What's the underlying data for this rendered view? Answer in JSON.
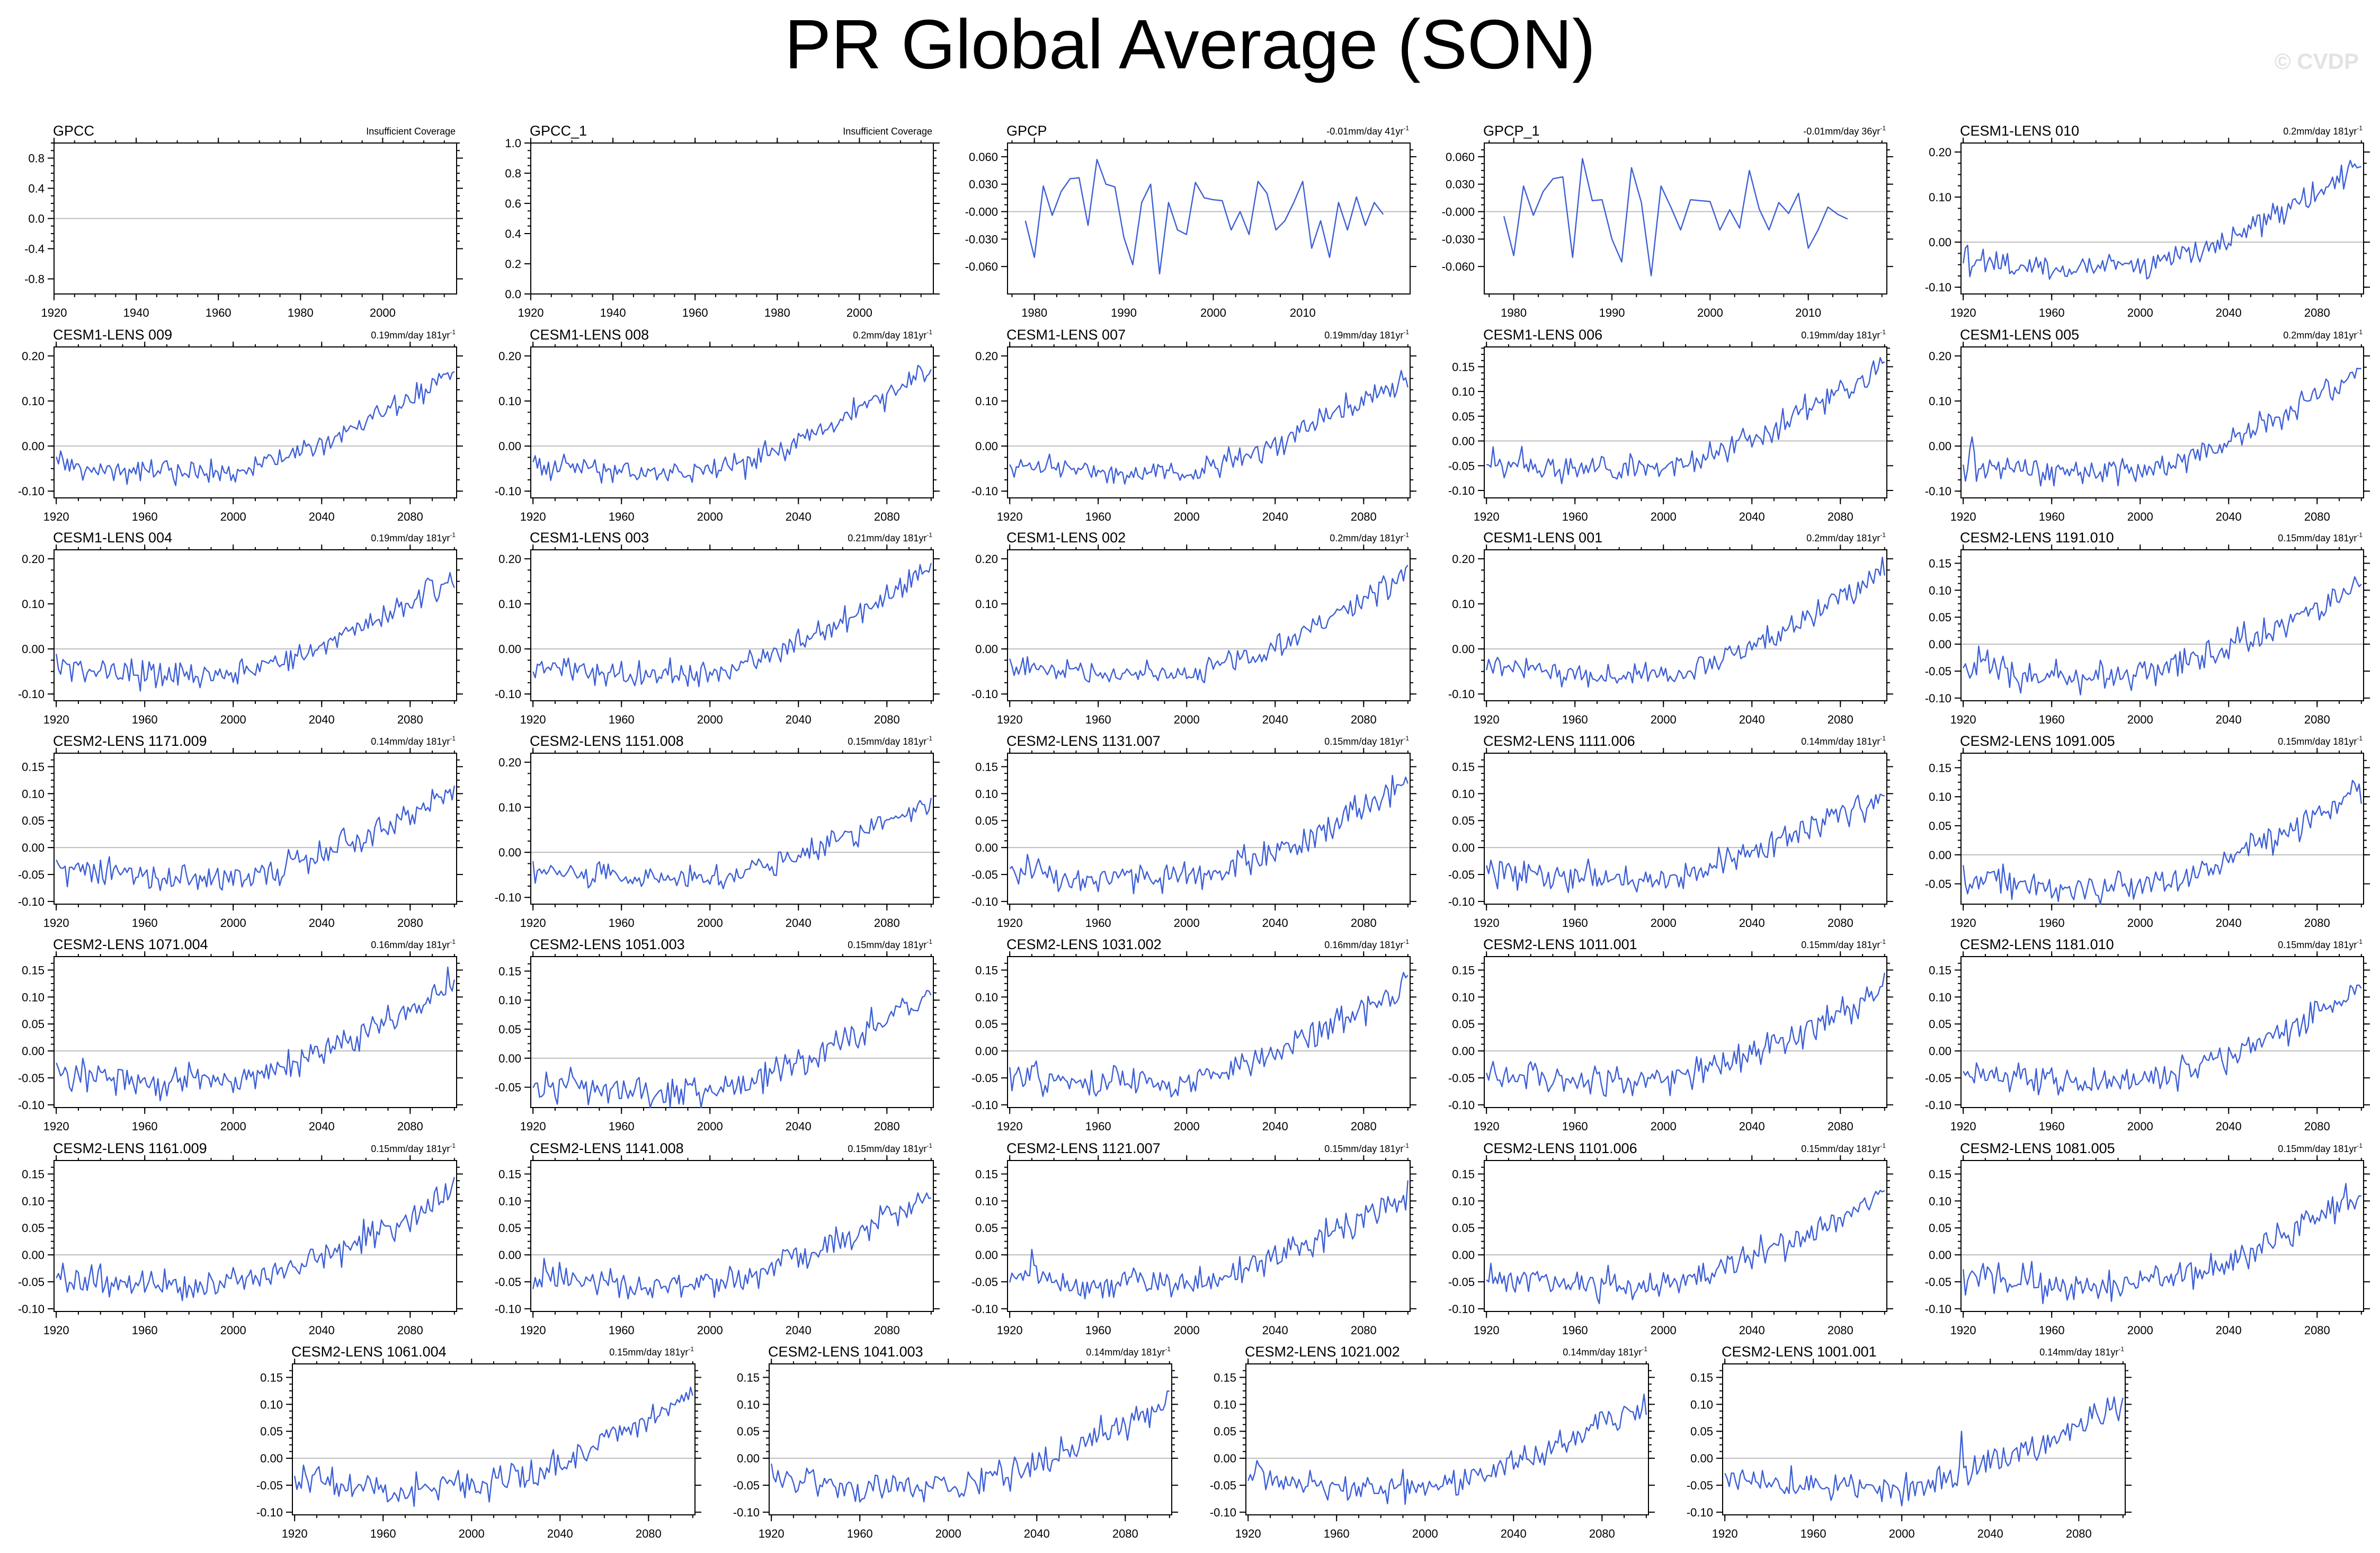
{
  "title": "PR Global Average (SON)",
  "watermark": "© CVDP",
  "colors": {
    "series": "#3d5fd6",
    "zero_line": "#bdbdbd",
    "axes": "#000000"
  },
  "chart_data": [
    {
      "type": "line",
      "panel": "GPCC",
      "note": "Insufficient Coverage",
      "xlim": [
        1920,
        2018
      ],
      "xticks": [
        1920,
        1940,
        1960,
        1980,
        2000
      ],
      "ylim": [
        -1,
        1
      ],
      "yticks": [
        "0.8",
        "0.4",
        "0.0",
        "-0.4",
        "-0.8"
      ],
      "series": []
    },
    {
      "type": "line",
      "panel": "GPCC_1",
      "note": "Insufficient Coverage",
      "xlim": [
        1920,
        2018
      ],
      "xticks": [
        1920,
        1940,
        1960,
        1980,
        2000
      ],
      "ylim": [
        0,
        1
      ],
      "yticks": [
        "1.0",
        "0.8",
        "0.6",
        "0.4",
        "0.2",
        "0.0"
      ],
      "series": []
    },
    {
      "type": "line",
      "panel": "GPCP",
      "trend": "-0.01mm/day 41yr",
      "trend_sup": "-1",
      "xlim": [
        1977,
        2022
      ],
      "xticks": [
        1980,
        1990,
        2000,
        2010
      ],
      "ylim": [
        -0.09,
        0.075
      ],
      "yticks": [
        "0.060",
        "0.030",
        "-0.000",
        "-0.030",
        "-0.060"
      ],
      "series": [
        {
          "x0": 1979,
          "values": [
            -0.01,
            -0.05,
            0.028,
            -0.004,
            0.022,
            0.036,
            0.037,
            -0.015,
            0.057,
            0.03,
            0.027,
            -0.028,
            -0.058,
            0.01,
            0.03,
            -0.068,
            0.01,
            -0.02,
            -0.025,
            0.032,
            0.015,
            0.013,
            0.012,
            -0.02,
            0,
            -0.025,
            0.033,
            0.02,
            -0.02,
            -0.01,
            0.01,
            0.033,
            -0.04,
            -0.01,
            -0.05,
            0.01,
            -0.02,
            0.016,
            -0.015,
            0.01,
            -0.003
          ]
        }
      ]
    },
    {
      "type": "line",
      "panel": "GPCP_1",
      "trend": "-0.01mm/day 36yr",
      "trend_sup": "-1",
      "xlim": [
        1977,
        2018
      ],
      "xticks": [
        1980,
        1990,
        2000,
        2010
      ],
      "ylim": [
        -0.09,
        0.075
      ],
      "yticks": [
        "0.060",
        "0.030",
        "-0.000",
        "-0.030",
        "-0.060"
      ],
      "series": [
        {
          "x0": 1979,
          "values": [
            -0.005,
            -0.048,
            0.028,
            -0.004,
            0.022,
            0.036,
            0.038,
            -0.05,
            0.058,
            0.012,
            0.013,
            -0.03,
            -0.055,
            0.048,
            0.01,
            -0.07,
            0.028,
            0.005,
            -0.02,
            0.013,
            0.012,
            0.011,
            -0.02,
            0.002,
            -0.018,
            0.045,
            0.003,
            -0.02,
            0.01,
            -0.002,
            0.02,
            -0.04,
            -0.02,
            0.005,
            -0.003,
            -0.008
          ]
        }
      ]
    },
    {
      "type": "line",
      "panel": "CESM1-LENS 010",
      "trend": "0.2mm/day 181yr",
      "trend_sup": "-1",
      "seed": 10,
      "slope": 0.2,
      "spike_year": 0,
      "spike_val": 0,
      "xlim": [
        1919,
        2101
      ],
      "xticks": [
        1920,
        1960,
        2000,
        2040,
        2080
      ],
      "ylim": [
        -0.115,
        0.22
      ],
      "yticks": [
        "0.20",
        "0.10",
        "0.00",
        "-0.10"
      ]
    },
    {
      "type": "line",
      "panel": "CESM1-LENS 009",
      "trend": "0.19mm/day 181yr",
      "trend_sup": "-1",
      "seed": 9,
      "slope": 0.19,
      "spike_year": 0,
      "spike_val": 0,
      "xlim": [
        1919,
        2101
      ],
      "xticks": [
        1920,
        1960,
        2000,
        2040,
        2080
      ],
      "ylim": [
        -0.115,
        0.22
      ],
      "yticks": [
        "0.20",
        "0.10",
        "0.00",
        "-0.10"
      ]
    },
    {
      "type": "line",
      "panel": "CESM1-LENS 008",
      "trend": "0.2mm/day 181yr",
      "trend_sup": "-1",
      "seed": 8,
      "slope": 0.2,
      "spike_year": 0,
      "spike_val": 0,
      "xlim": [
        1919,
        2101
      ],
      "xticks": [
        1920,
        1960,
        2000,
        2040,
        2080
      ],
      "ylim": [
        -0.115,
        0.22
      ],
      "yticks": [
        "0.20",
        "0.10",
        "0.00",
        "-0.10"
      ]
    },
    {
      "type": "line",
      "panel": "CESM1-LENS 007",
      "trend": "0.19mm/day 181yr",
      "trend_sup": "-1",
      "seed": 7,
      "slope": 0.19,
      "spike_year": 0,
      "spike_val": 0,
      "xlim": [
        1919,
        2101
      ],
      "xticks": [
        1920,
        1960,
        2000,
        2040,
        2080
      ],
      "ylim": [
        -0.115,
        0.22
      ],
      "yticks": [
        "0.20",
        "0.10",
        "0.00",
        "-0.10"
      ]
    },
    {
      "type": "line",
      "panel": "CESM1-LENS 006",
      "trend": "0.19mm/day 181yr",
      "trend_sup": "-1",
      "seed": 6,
      "slope": 0.19,
      "spike_year": 0,
      "spike_val": 0,
      "xlim": [
        1919,
        2101
      ],
      "xticks": [
        1920,
        1960,
        2000,
        2040,
        2080
      ],
      "ylim": [
        -0.115,
        0.19
      ],
      "yticks": [
        "0.15",
        "0.10",
        "0.05",
        "0.00",
        "-0.05",
        "-0.10"
      ]
    },
    {
      "type": "line",
      "panel": "CESM1-LENS 005",
      "trend": "0.2mm/day 181yr",
      "trend_sup": "-1",
      "seed": 5,
      "slope": 0.2,
      "spike_year": 1924,
      "spike_val": 0.02,
      "xlim": [
        1919,
        2101
      ],
      "xticks": [
        1920,
        1960,
        2000,
        2040,
        2080
      ],
      "ylim": [
        -0.115,
        0.22
      ],
      "yticks": [
        "0.20",
        "0.10",
        "0.00",
        "-0.10"
      ]
    },
    {
      "type": "line",
      "panel": "CESM1-LENS 004",
      "trend": "0.19mm/day 181yr",
      "trend_sup": "-1",
      "seed": 4,
      "slope": 0.19,
      "spike_year": 0,
      "spike_val": 0,
      "xlim": [
        1919,
        2101
      ],
      "xticks": [
        1920,
        1960,
        2000,
        2040,
        2080
      ],
      "ylim": [
        -0.115,
        0.22
      ],
      "yticks": [
        "0.20",
        "0.10",
        "0.00",
        "-0.10"
      ]
    },
    {
      "type": "line",
      "panel": "CESM1-LENS 003",
      "trend": "0.21mm/day 181yr",
      "trend_sup": "-1",
      "seed": 3,
      "slope": 0.21,
      "spike_year": 0,
      "spike_val": 0,
      "xlim": [
        1919,
        2101
      ],
      "xticks": [
        1920,
        1960,
        2000,
        2040,
        2080
      ],
      "ylim": [
        -0.115,
        0.22
      ],
      "yticks": [
        "0.20",
        "0.10",
        "0.00",
        "-0.10"
      ]
    },
    {
      "type": "line",
      "panel": "CESM1-LENS 002",
      "trend": "0.2mm/day 181yr",
      "trend_sup": "-1",
      "seed": 2,
      "slope": 0.2,
      "spike_year": 0,
      "spike_val": 0,
      "xlim": [
        1919,
        2101
      ],
      "xticks": [
        1920,
        1960,
        2000,
        2040,
        2080
      ],
      "ylim": [
        -0.115,
        0.22
      ],
      "yticks": [
        "0.20",
        "0.10",
        "0.00",
        "-0.10"
      ]
    },
    {
      "type": "line",
      "panel": "CESM1-LENS 001",
      "trend": "0.2mm/day 181yr",
      "trend_sup": "-1",
      "seed": 1,
      "slope": 0.2,
      "spike_year": 0,
      "spike_val": 0,
      "xlim": [
        1919,
        2101
      ],
      "xticks": [
        1920,
        1960,
        2000,
        2040,
        2080
      ],
      "ylim": [
        -0.115,
        0.22
      ],
      "yticks": [
        "0.20",
        "0.10",
        "0.00",
        "-0.10"
      ]
    },
    {
      "type": "line",
      "panel": "CESM2-LENS 1191.010",
      "trend": "0.15mm/day 181yr",
      "trend_sup": "-1",
      "seed": 21,
      "slope": 0.15,
      "spike_year": 0,
      "spike_val": 0,
      "xlim": [
        1919,
        2101
      ],
      "xticks": [
        1920,
        1960,
        2000,
        2040,
        2080
      ],
      "ylim": [
        -0.105,
        0.175
      ],
      "yticks": [
        "0.15",
        "0.10",
        "0.05",
        "0.00",
        "-0.05",
        "-0.10"
      ]
    },
    {
      "type": "line",
      "panel": "CESM2-LENS 1171.009",
      "trend": "0.14mm/day 181yr",
      "trend_sup": "-1",
      "seed": 22,
      "slope": 0.14,
      "spike_year": 0,
      "spike_val": 0,
      "xlim": [
        1919,
        2101
      ],
      "xticks": [
        1920,
        1960,
        2000,
        2040,
        2080
      ],
      "ylim": [
        -0.105,
        0.175
      ],
      "yticks": [
        "0.15",
        "0.10",
        "0.05",
        "0.00",
        "-0.05",
        "-0.10"
      ]
    },
    {
      "type": "line",
      "panel": "CESM2-LENS 1151.008",
      "trend": "0.15mm/day 181yr",
      "trend_sup": "-1",
      "seed": 23,
      "slope": 0.15,
      "spike_year": 0,
      "spike_val": 0,
      "xlim": [
        1919,
        2101
      ],
      "xticks": [
        1920,
        1960,
        2000,
        2040,
        2080
      ],
      "ylim": [
        -0.115,
        0.22
      ],
      "yticks": [
        "0.20",
        "0.10",
        "0.00",
        "-0.10"
      ]
    },
    {
      "type": "line",
      "panel": "CESM2-LENS 1131.007",
      "trend": "0.15mm/day 181yr",
      "trend_sup": "-1",
      "seed": 24,
      "slope": 0.15,
      "spike_year": 0,
      "spike_val": 0,
      "xlim": [
        1919,
        2101
      ],
      "xticks": [
        1920,
        1960,
        2000,
        2040,
        2080
      ],
      "ylim": [
        -0.105,
        0.175
      ],
      "yticks": [
        "0.15",
        "0.10",
        "0.05",
        "0.00",
        "-0.05",
        "-0.10"
      ]
    },
    {
      "type": "line",
      "panel": "CESM2-LENS 1111.006",
      "trend": "0.14mm/day 181yr",
      "trend_sup": "-1",
      "seed": 25,
      "slope": 0.14,
      "spike_year": 0,
      "spike_val": 0,
      "xlim": [
        1919,
        2101
      ],
      "xticks": [
        1920,
        1960,
        2000,
        2040,
        2080
      ],
      "ylim": [
        -0.105,
        0.175
      ],
      "yticks": [
        "0.15",
        "0.10",
        "0.05",
        "0.00",
        "-0.05",
        "-0.10"
      ]
    },
    {
      "type": "line",
      "panel": "CESM2-LENS 1091.005",
      "trend": "0.15mm/day 181yr",
      "trend_sup": "-1",
      "seed": 26,
      "slope": 0.15,
      "spike_year": 0,
      "spike_val": 0,
      "xlim": [
        1919,
        2101
      ],
      "xticks": [
        1920,
        1960,
        2000,
        2040,
        2080
      ],
      "ylim": [
        -0.085,
        0.175
      ],
      "yticks": [
        "0.15",
        "0.10",
        "0.05",
        "0.00",
        "-0.05"
      ]
    },
    {
      "type": "line",
      "panel": "CESM2-LENS 1071.004",
      "trend": "0.16mm/day 181yr",
      "trend_sup": "-1",
      "seed": 27,
      "slope": 0.16,
      "spike_year": 0,
      "spike_val": 0,
      "xlim": [
        1919,
        2101
      ],
      "xticks": [
        1920,
        1960,
        2000,
        2040,
        2080
      ],
      "ylim": [
        -0.105,
        0.175
      ],
      "yticks": [
        "0.15",
        "0.10",
        "0.05",
        "0.00",
        "-0.05",
        "-0.10"
      ]
    },
    {
      "type": "line",
      "panel": "CESM2-LENS 1051.003",
      "trend": "0.15mm/day 181yr",
      "trend_sup": "-1",
      "seed": 28,
      "slope": 0.15,
      "spike_year": 0,
      "spike_val": 0,
      "xlim": [
        1919,
        2101
      ],
      "xticks": [
        1920,
        1960,
        2000,
        2040,
        2080
      ],
      "ylim": [
        -0.085,
        0.175
      ],
      "yticks": [
        "0.15",
        "0.10",
        "0.05",
        "0.00",
        "-0.05"
      ]
    },
    {
      "type": "line",
      "panel": "CESM2-LENS 1031.002",
      "trend": "0.16mm/day 181yr",
      "trend_sup": "-1",
      "seed": 29,
      "slope": 0.16,
      "spike_year": 0,
      "spike_val": 0,
      "xlim": [
        1919,
        2101
      ],
      "xticks": [
        1920,
        1960,
        2000,
        2040,
        2080
      ],
      "ylim": [
        -0.105,
        0.175
      ],
      "yticks": [
        "0.15",
        "0.10",
        "0.05",
        "0.00",
        "-0.05",
        "-0.10"
      ]
    },
    {
      "type": "line",
      "panel": "CESM2-LENS 1011.001",
      "trend": "0.15mm/day 181yr",
      "trend_sup": "-1",
      "seed": 30,
      "slope": 0.15,
      "spike_year": 0,
      "spike_val": 0,
      "xlim": [
        1919,
        2101
      ],
      "xticks": [
        1920,
        1960,
        2000,
        2040,
        2080
      ],
      "ylim": [
        -0.105,
        0.175
      ],
      "yticks": [
        "0.15",
        "0.10",
        "0.05",
        "0.00",
        "-0.05",
        "-0.10"
      ]
    },
    {
      "type": "line",
      "panel": "CESM2-LENS 1181.010",
      "trend": "0.15mm/day 181yr",
      "trend_sup": "-1",
      "seed": 31,
      "slope": 0.15,
      "spike_year": 0,
      "spike_val": 0,
      "xlim": [
        1919,
        2101
      ],
      "xticks": [
        1920,
        1960,
        2000,
        2040,
        2080
      ],
      "ylim": [
        -0.105,
        0.175
      ],
      "yticks": [
        "0.15",
        "0.10",
        "0.05",
        "0.00",
        "-0.05",
        "-0.10"
      ]
    },
    {
      "type": "line",
      "panel": "CESM2-LENS 1161.009",
      "trend": "0.15mm/day 181yr",
      "trend_sup": "-1",
      "seed": 32,
      "slope": 0.15,
      "spike_year": 0,
      "spike_val": 0,
      "xlim": [
        1919,
        2101
      ],
      "xticks": [
        1920,
        1960,
        2000,
        2040,
        2080
      ],
      "ylim": [
        -0.105,
        0.175
      ],
      "yticks": [
        "0.15",
        "0.10",
        "0.05",
        "0.00",
        "-0.05",
        "-0.10"
      ]
    },
    {
      "type": "line",
      "panel": "CESM2-LENS 1141.008",
      "trend": "0.15mm/day 181yr",
      "trend_sup": "-1",
      "seed": 33,
      "slope": 0.15,
      "spike_year": 0,
      "spike_val": 0,
      "xlim": [
        1919,
        2101
      ],
      "xticks": [
        1920,
        1960,
        2000,
        2040,
        2080
      ],
      "ylim": [
        -0.105,
        0.175
      ],
      "yticks": [
        "0.15",
        "0.10",
        "0.05",
        "0.00",
        "-0.05",
        "-0.10"
      ]
    },
    {
      "type": "line",
      "panel": "CESM2-LENS 1121.007",
      "trend": "0.15mm/day 181yr",
      "trend_sup": "-1",
      "seed": 34,
      "slope": 0.15,
      "spike_year": 1930,
      "spike_val": 0.01,
      "xlim": [
        1919,
        2101
      ],
      "xticks": [
        1920,
        1960,
        2000,
        2040,
        2080
      ],
      "ylim": [
        -0.105,
        0.175
      ],
      "yticks": [
        "0.15",
        "0.10",
        "0.05",
        "0.00",
        "-0.05",
        "-0.10"
      ]
    },
    {
      "type": "line",
      "panel": "CESM2-LENS 1101.006",
      "trend": "0.15mm/day 181yr",
      "trend_sup": "-1",
      "seed": 35,
      "slope": 0.15,
      "spike_year": 0,
      "spike_val": 0,
      "xlim": [
        1919,
        2101
      ],
      "xticks": [
        1920,
        1960,
        2000,
        2040,
        2080
      ],
      "ylim": [
        -0.105,
        0.175
      ],
      "yticks": [
        "0.15",
        "0.10",
        "0.05",
        "0.00",
        "-0.05",
        "-0.10"
      ]
    },
    {
      "type": "line",
      "panel": "CESM2-LENS 1081.005",
      "trend": "0.15mm/day 181yr",
      "trend_sup": "-1",
      "seed": 36,
      "slope": 0.15,
      "spike_year": 0,
      "spike_val": 0,
      "xlim": [
        1919,
        2101
      ],
      "xticks": [
        1920,
        1960,
        2000,
        2040,
        2080
      ],
      "ylim": [
        -0.105,
        0.175
      ],
      "yticks": [
        "0.15",
        "0.10",
        "0.05",
        "0.00",
        "-0.05",
        "-0.10"
      ]
    },
    {
      "type": "line",
      "panel": "CESM2-LENS 1061.004",
      "trend": "0.15mm/day 181yr",
      "trend_sup": "-1",
      "seed": 37,
      "slope": 0.15,
      "spike_year": 0,
      "spike_val": 0,
      "xlim": [
        1919,
        2101
      ],
      "xticks": [
        1920,
        1960,
        2000,
        2040,
        2080
      ],
      "ylim": [
        -0.105,
        0.175
      ],
      "yticks": [
        "0.15",
        "0.10",
        "0.05",
        "0.00",
        "-0.05",
        "-0.10"
      ]
    },
    {
      "type": "line",
      "panel": "CESM2-LENS 1041.003",
      "trend": "0.14mm/day 181yr",
      "trend_sup": "-1",
      "seed": 38,
      "slope": 0.14,
      "spike_year": 0,
      "spike_val": 0,
      "xlim": [
        1919,
        2101
      ],
      "xticks": [
        1920,
        1960,
        2000,
        2040,
        2080
      ],
      "ylim": [
        -0.105,
        0.175
      ],
      "yticks": [
        "0.15",
        "0.10",
        "0.05",
        "0.00",
        "-0.05",
        "-0.10"
      ]
    },
    {
      "type": "line",
      "panel": "CESM2-LENS 1021.002",
      "trend": "0.14mm/day 181yr",
      "trend_sup": "-1",
      "seed": 39,
      "slope": 0.14,
      "spike_year": 0,
      "spike_val": 0,
      "xlim": [
        1919,
        2101
      ],
      "xticks": [
        1920,
        1960,
        2000,
        2040,
        2080
      ],
      "ylim": [
        -0.105,
        0.175
      ],
      "yticks": [
        "0.15",
        "0.10",
        "0.05",
        "0.00",
        "-0.05",
        "-0.10"
      ]
    },
    {
      "type": "line",
      "panel": "CESM2-LENS 1001.001",
      "trend": "0.14mm/day 181yr",
      "trend_sup": "-1",
      "seed": 40,
      "slope": 0.14,
      "spike_year": 2027,
      "spike_val": 0.05,
      "xlim": [
        1919,
        2101
      ],
      "xticks": [
        1920,
        1960,
        2000,
        2040,
        2080
      ],
      "ylim": [
        -0.105,
        0.175
      ],
      "yticks": [
        "0.15",
        "0.10",
        "0.05",
        "0.00",
        "-0.05",
        "-0.10"
      ]
    }
  ]
}
